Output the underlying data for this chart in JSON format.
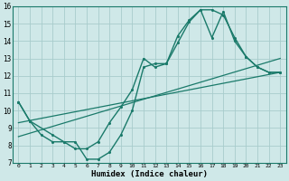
{
  "xlabel": "Humidex (Indice chaleur)",
  "background_color": "#cfe8e8",
  "grid_color": "#a8cccc",
  "line_color": "#1a7a6a",
  "xlim": [
    -0.5,
    23.5
  ],
  "ylim": [
    7,
    16
  ],
  "xticks": [
    0,
    1,
    2,
    3,
    4,
    5,
    6,
    7,
    8,
    9,
    10,
    11,
    12,
    13,
    14,
    15,
    16,
    17,
    18,
    19,
    20,
    21,
    22,
    23
  ],
  "yticks": [
    7,
    8,
    9,
    10,
    11,
    12,
    13,
    14,
    15,
    16
  ],
  "curve1_x": [
    0,
    1,
    2,
    3,
    4,
    5,
    6,
    7,
    8,
    9,
    10,
    11,
    12,
    13,
    14,
    15,
    16,
    17,
    18,
    19,
    20,
    21,
    22,
    23
  ],
  "curve1_y": [
    10.5,
    9.4,
    8.6,
    8.2,
    8.2,
    7.8,
    7.8,
    8.2,
    9.3,
    10.2,
    11.2,
    13.0,
    12.5,
    12.7,
    13.9,
    15.1,
    15.8,
    15.8,
    15.5,
    14.2,
    13.1,
    12.5,
    12.2,
    12.2
  ],
  "curve2_x": [
    0,
    1,
    3,
    4,
    5,
    6,
    7,
    8,
    9,
    10,
    11,
    12,
    13,
    14,
    15,
    16,
    17,
    18,
    19,
    20,
    21,
    22,
    23
  ],
  "curve2_y": [
    10.5,
    9.4,
    8.6,
    8.2,
    8.2,
    7.2,
    7.2,
    7.6,
    8.6,
    10.0,
    12.5,
    12.7,
    12.7,
    14.3,
    15.2,
    15.8,
    14.2,
    15.7,
    14.0,
    13.1,
    12.5,
    12.2,
    12.2
  ],
  "line1_x": [
    0,
    23
  ],
  "line1_y": [
    8.5,
    13.0
  ],
  "line2_x": [
    0,
    23
  ],
  "line2_y": [
    9.3,
    12.2
  ]
}
